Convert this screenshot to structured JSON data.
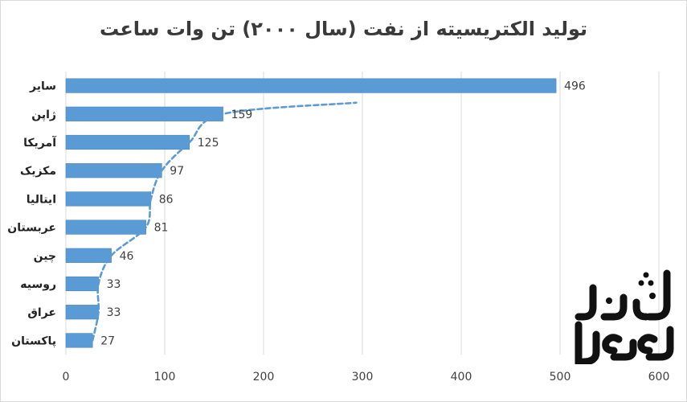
{
  "chart_data": {
    "type": "bar",
    "orientation": "horizontal",
    "title": "تولید الکتریسیته از نفت (سال ۲۰۰۰) تن وات ساعت",
    "xlabel": "",
    "ylabel": "",
    "xlim": [
      0,
      600
    ],
    "xticks": [
      "0",
      "100",
      "200",
      "300",
      "400",
      "500",
      "600"
    ],
    "categories": [
      "سایر",
      "ژاپن",
      "آمریکا",
      "مکزیک",
      "ایتالیا",
      "عربستان",
      "چین",
      "روسیه",
      "عراق",
      "پاکستان"
    ],
    "values": [
      496,
      159,
      125,
      97,
      86,
      81,
      46,
      33,
      33,
      27
    ],
    "value_labels": [
      "496",
      "159",
      "125",
      "97",
      "86",
      "81",
      "46",
      "33",
      "33",
      "27"
    ],
    "grid": "vertical",
    "legend": "none",
    "bar_color": "#5b9bd5",
    "trend_line": "dashed",
    "trend_color": "#5b9bd5"
  },
  "watermark": {
    "text": "معمار نشان"
  }
}
